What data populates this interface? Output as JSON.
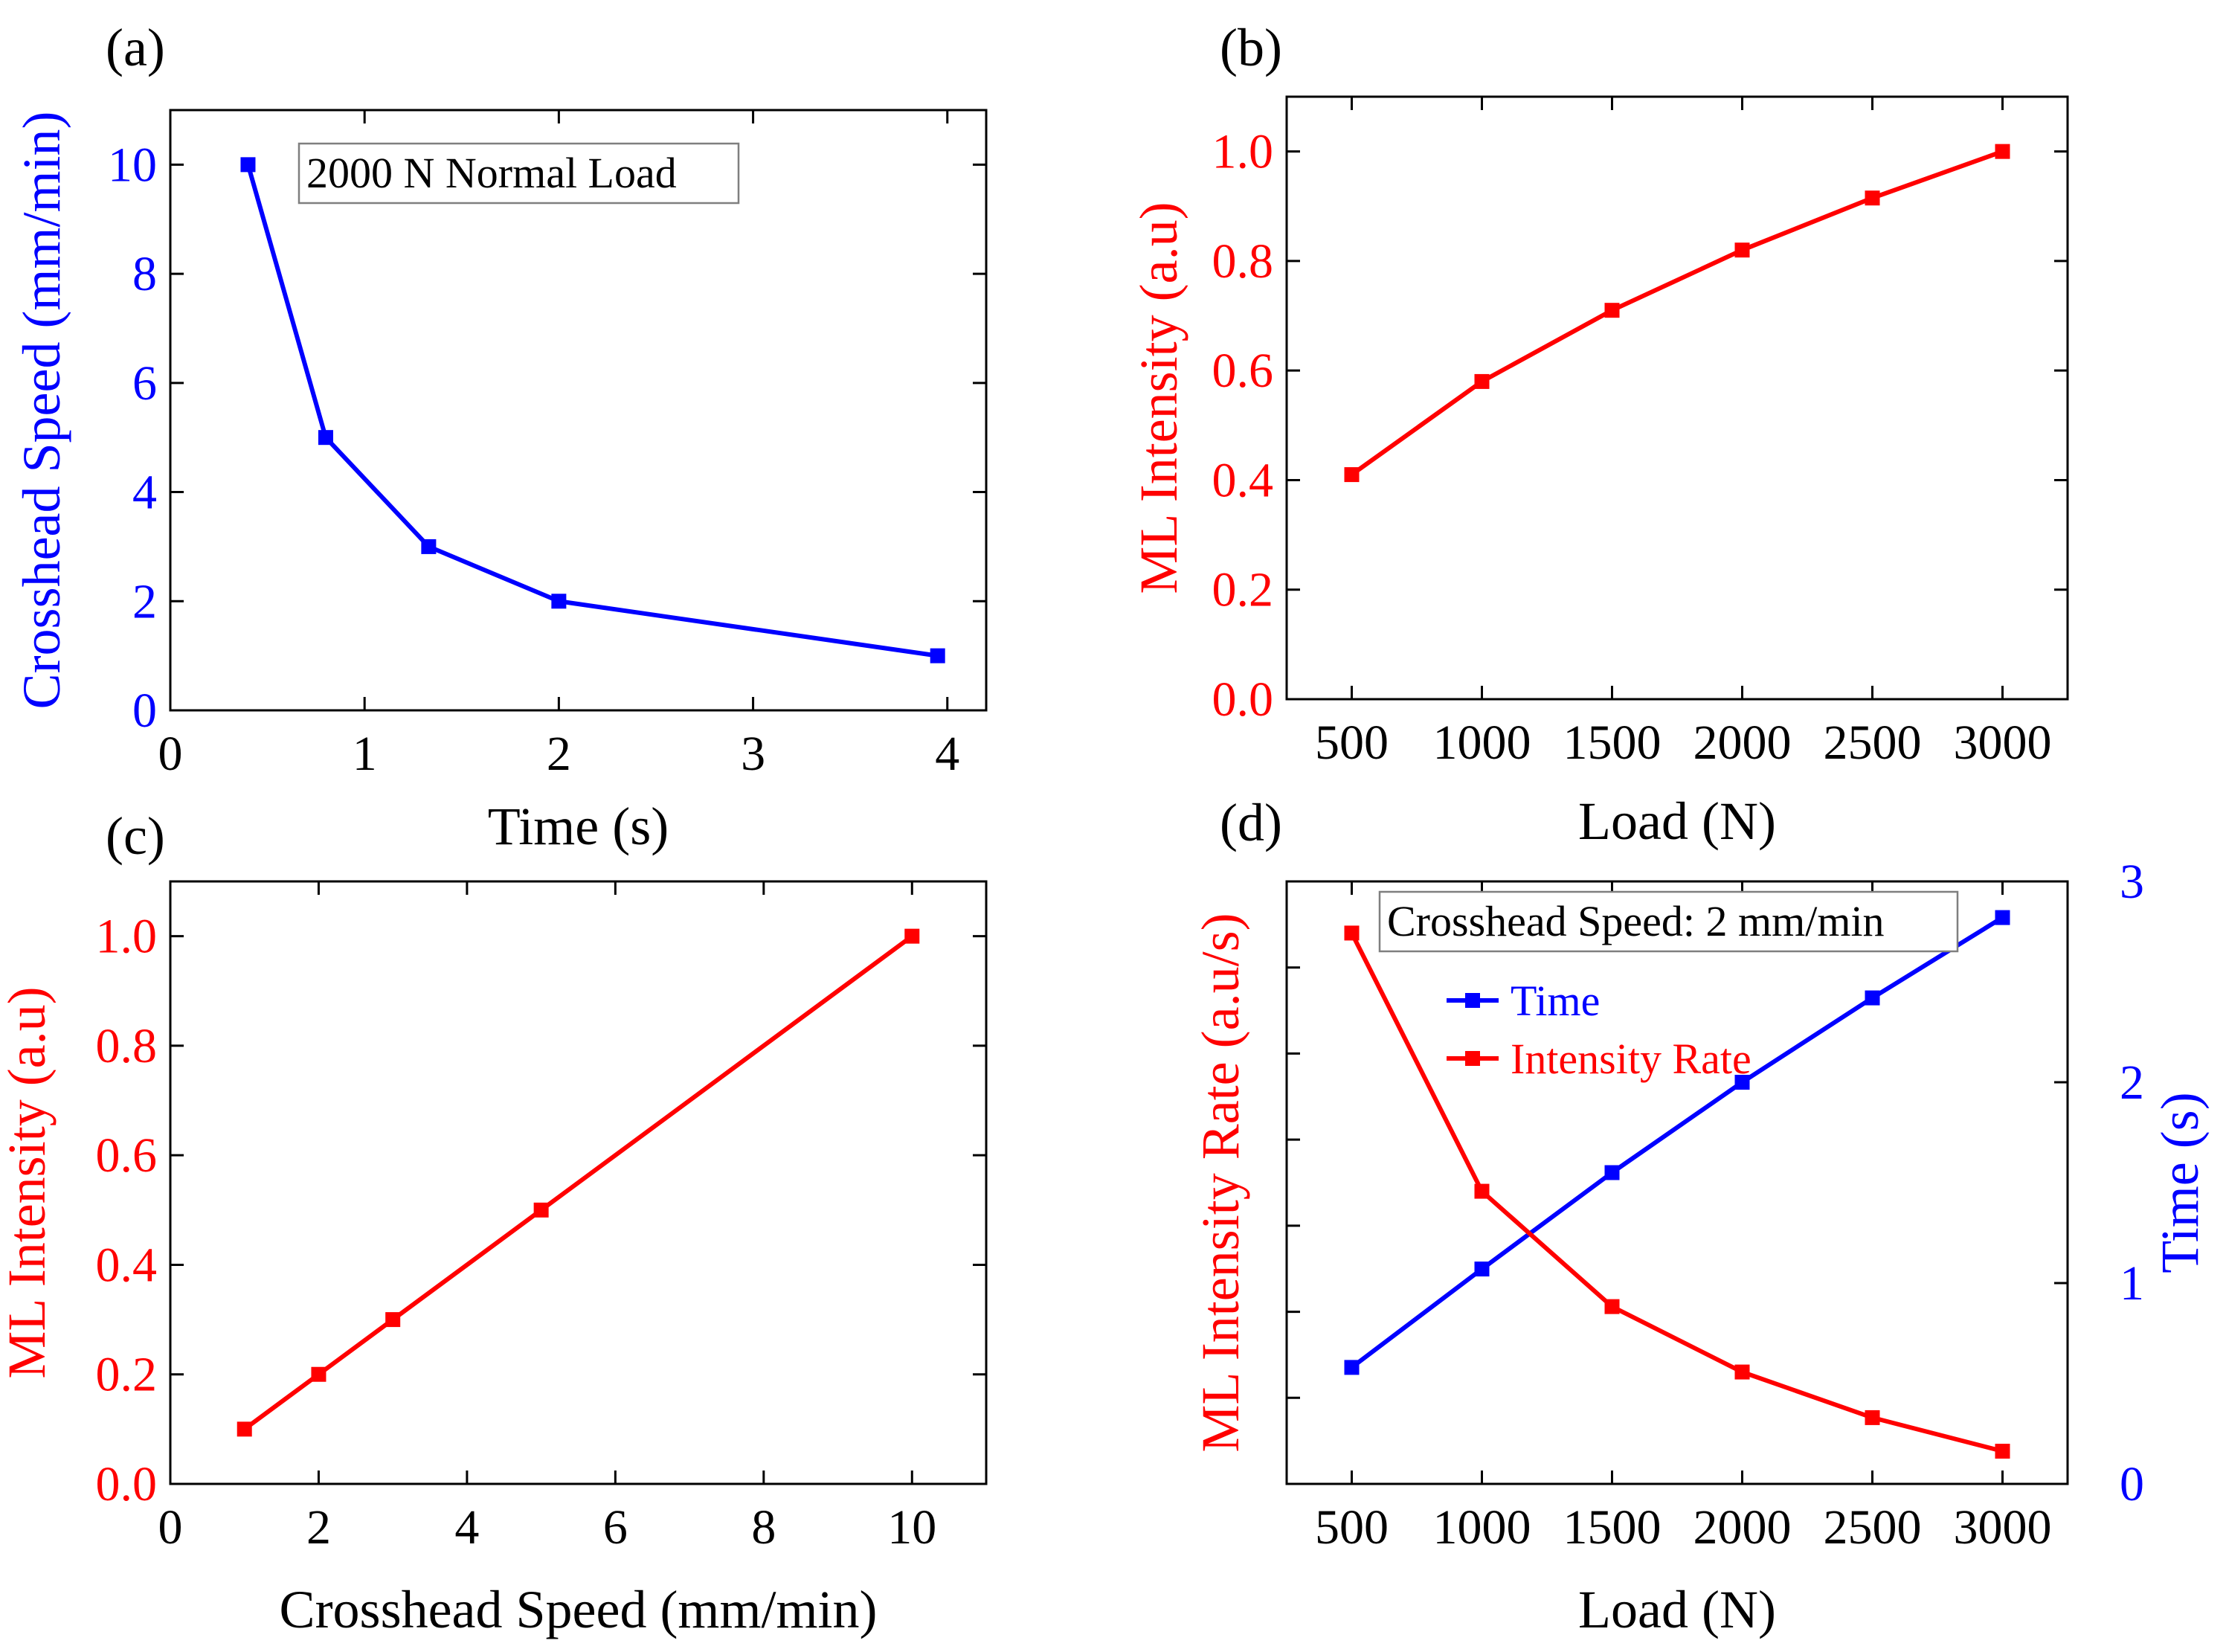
{
  "chart_data": [
    {
      "id": "a",
      "panel_label": "(a)",
      "type": "line",
      "xlabel": "Time (s)",
      "ylabel": "Crosshead Speed  (mm/min)",
      "xlim": [
        0,
        4.2
      ],
      "ylim": [
        0,
        11
      ],
      "xticks": [
        0,
        1,
        2,
        3,
        4
      ],
      "yticks": [
        0,
        2,
        4,
        6,
        8,
        10
      ],
      "annotation": "2000 N Normal Load",
      "series": [
        {
          "name": "Crosshead Speed",
          "color": "#0000ff",
          "axis": "left",
          "x": [
            0.4,
            0.8,
            1.33,
            2.0,
            3.95
          ],
          "y": [
            10,
            5,
            3,
            2,
            1
          ]
        }
      ]
    },
    {
      "id": "b",
      "panel_label": "(b)",
      "type": "line",
      "xlabel": "Load (N)",
      "ylabel": "ML Intensity (a.u)",
      "xlim": [
        250,
        3250
      ],
      "ylim": [
        0,
        1.1
      ],
      "xticks": [
        500,
        1000,
        1500,
        2000,
        2500,
        3000
      ],
      "yticks": [
        0.0,
        0.2,
        0.4,
        0.6,
        0.8,
        1.0
      ],
      "series": [
        {
          "name": "ML Intensity",
          "color": "#ff0000",
          "axis": "left",
          "x": [
            500,
            1000,
            1500,
            2000,
            2500,
            3000
          ],
          "y": [
            0.41,
            0.58,
            0.71,
            0.82,
            0.915,
            1.0
          ]
        }
      ]
    },
    {
      "id": "c",
      "panel_label": "(c)",
      "type": "line",
      "xlabel": "Crosshead Speed  (mm/min)",
      "ylabel": "ML Intensity (a.u)",
      "xlim": [
        0,
        11
      ],
      "ylim": [
        0,
        1.1
      ],
      "xticks": [
        0,
        2,
        4,
        6,
        8,
        10
      ],
      "yticks": [
        0.0,
        0.2,
        0.4,
        0.6,
        0.8,
        1.0
      ],
      "series": [
        {
          "name": "ML Intensity",
          "color": "#ff0000",
          "axis": "left",
          "x": [
            1,
            2,
            3,
            5,
            10
          ],
          "y": [
            0.1,
            0.2,
            0.3,
            0.5,
            1.0
          ]
        }
      ]
    },
    {
      "id": "d",
      "panel_label": "(d)",
      "type": "line",
      "xlabel": "Load (N)",
      "ylabel": "ML Intensity Rate (a.u/s)",
      "ylabel_right": "Time (s)",
      "xlim": [
        250,
        3250
      ],
      "ylim": [
        0,
        7
      ],
      "ylim_right": [
        0,
        3
      ],
      "xticks": [
        500,
        1000,
        1500,
        2000,
        2500,
        3000
      ],
      "yticks": [],
      "yticks_right": [
        0,
        1,
        2,
        3
      ],
      "annotation": "Crosshead Speed: 2 mm/min",
      "legend": [
        "Time",
        "Intensity Rate"
      ],
      "series": [
        {
          "name": "Time",
          "color": "#0000ff",
          "axis": "right",
          "x": [
            500,
            1000,
            1500,
            2000,
            2500,
            3000
          ],
          "y": [
            0.58,
            1.07,
            1.55,
            2.0,
            2.42,
            2.82
          ]
        },
        {
          "name": "Intensity Rate",
          "color": "#ff0000",
          "axis": "left",
          "x": [
            500,
            1000,
            1500,
            2000,
            2500,
            3000
          ],
          "y": [
            6.4,
            3.4,
            2.06,
            1.3,
            0.77,
            0.38
          ]
        }
      ]
    }
  ]
}
